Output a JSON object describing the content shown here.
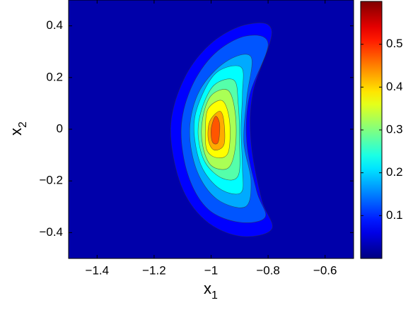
{
  "chart_data": {
    "type": "contour",
    "xlabel": {
      "text": "x",
      "subscript": "1"
    },
    "ylabel": {
      "text": "x",
      "subscript": "2"
    },
    "xlim": [
      -1.5,
      -0.5
    ],
    "ylim": [
      -0.5,
      0.5
    ],
    "xticks": [
      {
        "value": -1.4,
        "label": "−1.4"
      },
      {
        "value": -1.2,
        "label": "−1.2"
      },
      {
        "value": -1,
        "label": "−1"
      },
      {
        "value": -0.8,
        "label": "−0.8"
      },
      {
        "value": -0.6,
        "label": "−0.6"
      }
    ],
    "yticks": [
      {
        "value": -0.4,
        "label": "−0.4"
      },
      {
        "value": -0.2,
        "label": "−0.2"
      },
      0,
      0.2,
      0.4
    ],
    "colormap": "jet",
    "clim": [
      0,
      0.6
    ],
    "cticks": [
      0.1,
      0.2,
      0.3,
      0.4,
      0.5
    ],
    "contours": [
      {
        "level": 0.05,
        "x": [
          -0.787,
          -0.872,
          -0.995,
          -1.093,
          -1.142,
          -1.106,
          -1.02,
          -0.897,
          -0.787,
          -0.823,
          -0.86,
          -0.853
        ],
        "y": [
          0.378,
          0.406,
          0.337,
          0.199,
          0.006,
          -0.215,
          -0.353,
          -0.414,
          -0.386,
          -0.27,
          -0.05,
          0.143
        ]
      },
      {
        "level": 0.1,
        "x": [
          -0.8,
          -0.88,
          -0.99,
          -1.07,
          -1.105,
          -1.08,
          -1.01,
          -0.9,
          -0.81,
          -0.84,
          -0.875,
          -0.865
        ],
        "y": [
          0.33,
          0.36,
          0.29,
          0.16,
          0,
          -0.18,
          -0.31,
          -0.36,
          -0.34,
          -0.24,
          -0.05,
          0.13
        ]
      },
      {
        "level": 0.15,
        "x": [
          -0.86,
          -0.95,
          -1.04,
          -1.075,
          -1.05,
          -0.98,
          -0.88,
          -0.86,
          -0.885,
          -0.875
        ],
        "y": [
          0.28,
          0.26,
          0.15,
          0,
          -0.16,
          -0.27,
          -0.3,
          -0.2,
          -0.05,
          0.12
        ]
      },
      {
        "level": 0.2,
        "x": [
          -0.895,
          -0.98,
          -1.04,
          -1.06,
          -1.035,
          -0.97,
          -0.895,
          -0.89,
          -0.895,
          -0.89
        ],
        "y": [
          0.24,
          0.22,
          0.11,
          0,
          -0.14,
          -0.23,
          -0.245,
          -0.15,
          0,
          0.14
        ]
      },
      {
        "level": 0.25,
        "x": [
          -0.92,
          -0.99,
          -1.035,
          -1.045,
          -1.02,
          -0.96,
          -0.905,
          -0.9,
          -0.905
        ],
        "y": [
          0.19,
          0.17,
          0.07,
          -0.03,
          -0.13,
          -0.19,
          -0.18,
          -0.05,
          0.1
        ]
      },
      {
        "level": 0.3,
        "x": [
          -0.94,
          -1,
          -1.03,
          -1.03,
          -1,
          -0.94,
          -0.915,
          -0.915
        ],
        "y": [
          0.15,
          0.13,
          0.04,
          -0.06,
          -0.14,
          -0.15,
          -0.07,
          0.06
        ]
      },
      {
        "level": 0.35,
        "x": [
          -0.96,
          -1.01,
          -1.02,
          -1.015,
          -0.98,
          -0.94,
          -0.935
        ],
        "y": [
          0.11,
          0.08,
          0,
          -0.08,
          -0.11,
          -0.09,
          0.03
        ]
      },
      {
        "level": 0.4,
        "x": [
          -0.97,
          -1.005,
          -1.01,
          -0.99,
          -0.955,
          -0.955
        ],
        "y": [
          0.07,
          0.03,
          -0.04,
          -0.08,
          -0.06,
          0.03
        ]
      },
      {
        "level": 0.45,
        "x": [
          -0.985,
          -1,
          -0.995,
          -0.975,
          -0.97
        ],
        "y": [
          0.05,
          0,
          -0.05,
          -0.05,
          0.02
        ]
      }
    ]
  }
}
